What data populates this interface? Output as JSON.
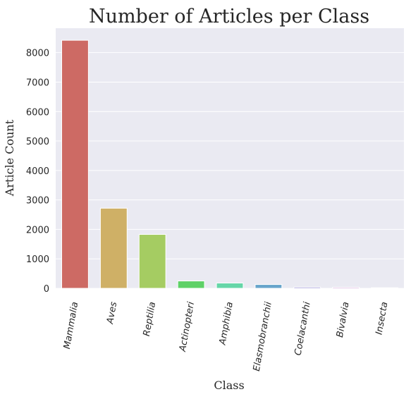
{
  "chart_data": {
    "type": "bar",
    "title": "Number of Articles per Class",
    "xlabel": "Class",
    "ylabel": "Article Count",
    "categories": [
      "Mammalia",
      "Aves",
      "Reptilia",
      "Actinopteri",
      "Amphibia",
      "Elasmobranchii",
      "Coelacanthi",
      "Bivalvia",
      "Insecta"
    ],
    "values": [
      8420,
      2720,
      1830,
      250,
      180,
      130,
      40,
      35,
      20
    ],
    "colors": [
      "#cd6a64",
      "#cfb066",
      "#a5cc62",
      "#5fd167",
      "#66d6a8",
      "#67a4cb",
      "#8d84cf",
      "#c48ccf",
      "#cfcfcf"
    ],
    "yticks": [
      0,
      1000,
      2000,
      3000,
      4000,
      5000,
      6000,
      7000,
      8000
    ],
    "ylim": [
      0,
      8830
    ],
    "grid": true,
    "background": "#eaeaf2"
  }
}
